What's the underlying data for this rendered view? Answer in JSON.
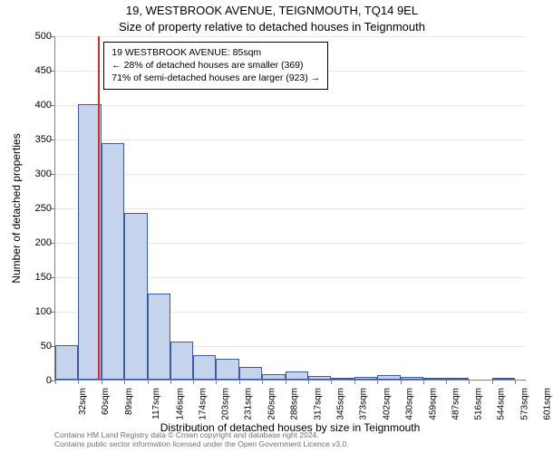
{
  "header": {
    "address": "19, WESTBROOK AVENUE, TEIGNMOUTH, TQ14 9EL",
    "subtitle": "Size of property relative to detached houses in Teignmouth"
  },
  "chart": {
    "type": "histogram",
    "ylabel": "Number of detached properties",
    "xlabel": "Distribution of detached houses by size in Teignmouth",
    "ylim": [
      0,
      500
    ],
    "ytick_step": 50,
    "xtick_labels": [
      "32sqm",
      "60sqm",
      "89sqm",
      "117sqm",
      "146sqm",
      "174sqm",
      "203sqm",
      "231sqm",
      "260sqm",
      "288sqm",
      "317sqm",
      "345sqm",
      "373sqm",
      "402sqm",
      "430sqm",
      "459sqm",
      "487sqm",
      "516sqm",
      "544sqm",
      "573sqm",
      "601sqm"
    ],
    "bar_values": [
      50,
      400,
      343,
      242,
      125,
      55,
      35,
      30,
      18,
      8,
      12,
      5,
      3,
      4,
      6,
      4,
      2,
      1,
      0,
      1
    ],
    "bar_fill": "#c6d3ec",
    "bar_border": "#3b5ba5",
    "grid_color": "#e8e8e8",
    "axis_color": "#808080",
    "background_color": "#ffffff",
    "marker_sqm": 85,
    "marker_color": "#d82c2c",
    "xrange": [
      32,
      615.4
    ],
    "label_fontsize": 12,
    "tick_fontsize": 11
  },
  "annotation": {
    "line1": "19 WESTBROOK AVENUE: 85sqm",
    "line2": "← 28% of detached houses are smaller (369)",
    "line3": "71% of semi-detached houses are larger (923) →"
  },
  "footer": {
    "line1": "Contains HM Land Registry data © Crown copyright and database right 2024.",
    "line2": "Contains public sector information licensed under the Open Government Licence v3.0."
  }
}
